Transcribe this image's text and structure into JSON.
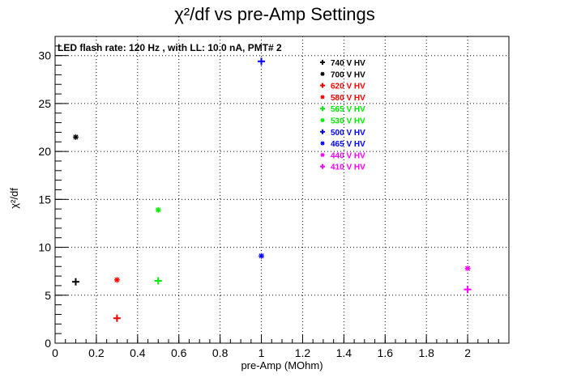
{
  "chart_data": {
    "type": "scatter",
    "title": "χ²/df vs pre-Amp Settings",
    "subtitle": "LED flash rate: 120 Hz , with LL: 10.0 nA, PMT# 2",
    "xlabel": "pre-Amp (MOhm)",
    "ylabel": "χ²/df",
    "xlim": [
      0,
      2.2
    ],
    "ylim": [
      0,
      32
    ],
    "x_ticks": [
      "0",
      "0.2",
      "0.4",
      "0.6",
      "0.8",
      "1",
      "1.2",
      "1.4",
      "1.6",
      "1.8",
      "2"
    ],
    "y_ticks": [
      "0",
      "5",
      "10",
      "15",
      "20",
      "25",
      "30"
    ],
    "grid": true,
    "legend_position": "top-right",
    "series": [
      {
        "name": "740 V HV",
        "color": "#000000",
        "marker": "plus",
        "points": [
          [
            0.1,
            6.4
          ]
        ]
      },
      {
        "name": "700 V HV",
        "color": "#000000",
        "marker": "star",
        "points": [
          [
            0.1,
            21.5
          ]
        ]
      },
      {
        "name": "620 V HV",
        "color": "#ff0000",
        "marker": "plus",
        "points": [
          [
            0.3,
            2.6
          ]
        ]
      },
      {
        "name": "580 V HV",
        "color": "#ff0000",
        "marker": "star",
        "points": [
          [
            0.3,
            6.6
          ]
        ]
      },
      {
        "name": "565 V HV",
        "color": "#00ee00",
        "marker": "plus",
        "points": [
          [
            0.5,
            6.5
          ]
        ]
      },
      {
        "name": "530 V HV",
        "color": "#00ee00",
        "marker": "star",
        "points": [
          [
            0.5,
            13.9
          ]
        ]
      },
      {
        "name": "500 V HV",
        "color": "#0000ff",
        "marker": "plus",
        "points": [
          [
            1.0,
            29.4
          ]
        ]
      },
      {
        "name": "465 V HV",
        "color": "#0000ff",
        "marker": "star",
        "points": [
          [
            1.0,
            9.1
          ]
        ]
      },
      {
        "name": "440 V HV",
        "color": "#ff00ff",
        "marker": "star",
        "points": [
          [
            2.0,
            7.8
          ]
        ]
      },
      {
        "name": "410 V HV",
        "color": "#ff00ff",
        "marker": "plus",
        "points": [
          [
            2.0,
            5.6
          ]
        ]
      }
    ]
  }
}
